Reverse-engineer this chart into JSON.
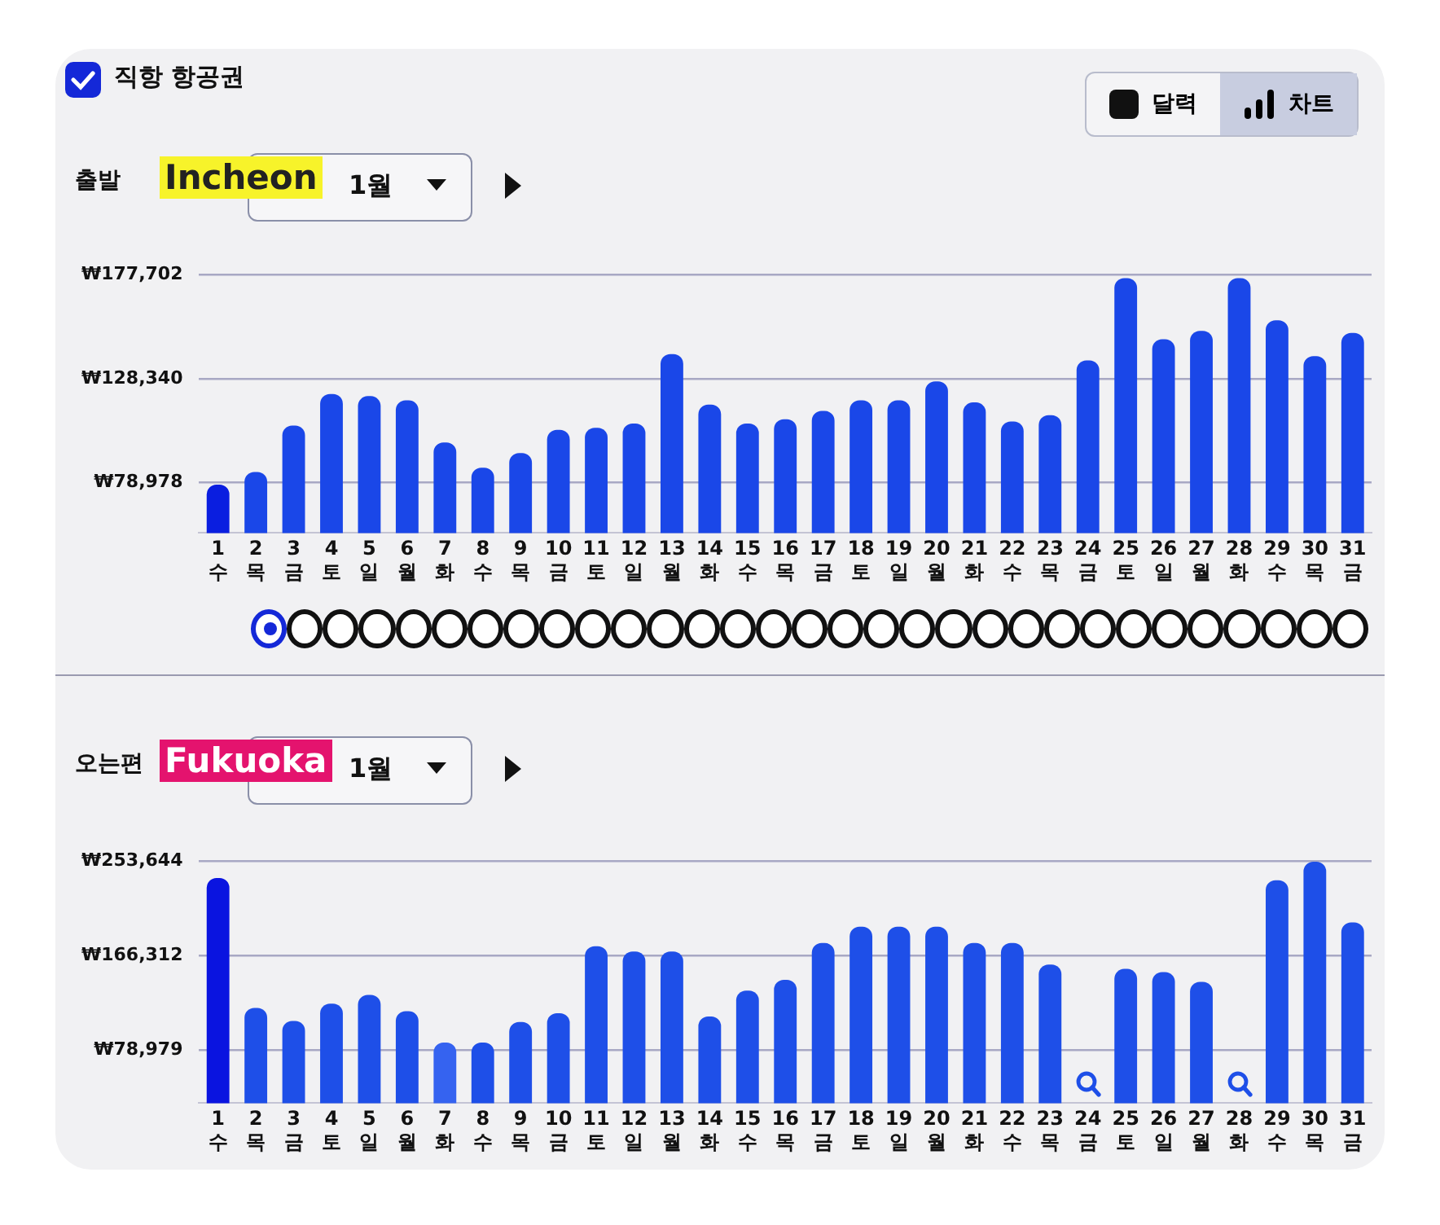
{
  "chart_data": [
    {
      "type": "bar",
      "annotations": [
        "직항 항공권",
        "달력",
        "차트",
        "출발",
        "Incheon",
        "1월"
      ],
      "categories": [
        "1\n수",
        "2\n목",
        "3\n금",
        "4\n토",
        "5\n일",
        "6\n월",
        "7\n화",
        "8\n수",
        "9\n목",
        "10\n금",
        "11\n토",
        "12\n일",
        "13\n월",
        "14\n화",
        "15\n수",
        "16\n목",
        "17\n금",
        "18\n토",
        "19\n일",
        "20\n월",
        "21\n화",
        "22\n수",
        "23\n목",
        "24\n금",
        "25\n토",
        "26\n일",
        "27\n월",
        "28\n화",
        "29\n수",
        "30\n목",
        "31\n금"
      ],
      "values": [
        78000,
        84000,
        106000,
        121000,
        120000,
        118000,
        98000,
        86000,
        93000,
        104000,
        105000,
        107000,
        140000,
        116000,
        107000,
        109000,
        113000,
        118000,
        118000,
        127000,
        117000,
        108000,
        111000,
        137000,
        176000,
        147000,
        151000,
        176000,
        156000,
        139000,
        150000
      ],
      "colors": [
        "#0a1ee0",
        "#1a47e8",
        "#1a47e8",
        "#1a47e8",
        "#1a47e8",
        "#1a47e8",
        "#1a47e8",
        "#1a47e8",
        "#1a47e8",
        "#1a47e8",
        "#1a47e8",
        "#1a47e8",
        "#1a47e8",
        "#1a47e8",
        "#1a47e8",
        "#1a47e8",
        "#1a47e8",
        "#1a47e8",
        "#1a47e8",
        "#1a47e8",
        "#1a47e8",
        "#1a47e8",
        "#1a47e8",
        "#1a47e8",
        "#1a47e8",
        "#1a47e8",
        "#1a47e8",
        "#1a47e8",
        "#1a47e8",
        "#1a47e8",
        "#1a47e8"
      ],
      "ylim": [
        55000,
        177702
      ],
      "yticks": [
        {
          "value": 78978,
          "label": "₩78,978"
        },
        {
          "value": 128340,
          "label": "₩128,340"
        },
        {
          "value": 177702,
          "label": "₩177,702"
        }
      ],
      "grid": "y"
    },
    {
      "type": "bar",
      "annotations": [
        "오는편",
        "Fukuoka",
        "1월"
      ],
      "categories": [
        "1\n수",
        "2\n목",
        "3\n금",
        "4\n토",
        "5\n일",
        "6\n월",
        "7\n화",
        "8\n수",
        "9\n목",
        "10\n금",
        "11\n토",
        "12\n일",
        "13\n월",
        "14\n화",
        "15\n수",
        "16\n목",
        "17\n금",
        "18\n토",
        "19\n일",
        "20\n월",
        "21\n화",
        "22\n수",
        "23\n목",
        "24\n금",
        "25\n토",
        "26\n일",
        "27\n월",
        "28\n화",
        "29\n수",
        "30\n목",
        "31\n금"
      ],
      "values": [
        238000,
        118000,
        106000,
        122000,
        130000,
        115000,
        86000,
        86000,
        105000,
        113000,
        175000,
        170000,
        170000,
        110000,
        134000,
        144000,
        178000,
        193000,
        193000,
        193000,
        178000,
        178000,
        158000,
        null,
        154000,
        151000,
        142000,
        null,
        236000,
        253000,
        197000
      ],
      "colors": [
        "#0a14e0",
        "#1e4fe8",
        "#1e4fe8",
        "#1e4fe8",
        "#1e4fe8",
        "#1e4fe8",
        "#3563f0",
        "#1e4fe8",
        "#1e4fe8",
        "#1e4fe8",
        "#1e4fe8",
        "#1e4fe8",
        "#1e4fe8",
        "#1e4fe8",
        "#1e4fe8",
        "#1e4fe8",
        "#1e4fe8",
        "#1e4fe8",
        "#1e4fe8",
        "#1e4fe8",
        "#1e4fe8",
        "#1e4fe8",
        "#1e4fe8",
        "#1e4fe8",
        "#1e4fe8",
        "#1e4fe8",
        "#1e4fe8",
        "#1e4fe8",
        "#1e4fe8",
        "#1e4fe8",
        "#1e4fe8"
      ],
      "ylim": [
        30000,
        253644
      ],
      "yticks": [
        {
          "value": 78979,
          "label": "₩78,979"
        },
        {
          "value": 166312,
          "label": "₩166,312"
        },
        {
          "value": 253644,
          "label": "₩253,644"
        }
      ],
      "grid": "y"
    }
  ]
}
